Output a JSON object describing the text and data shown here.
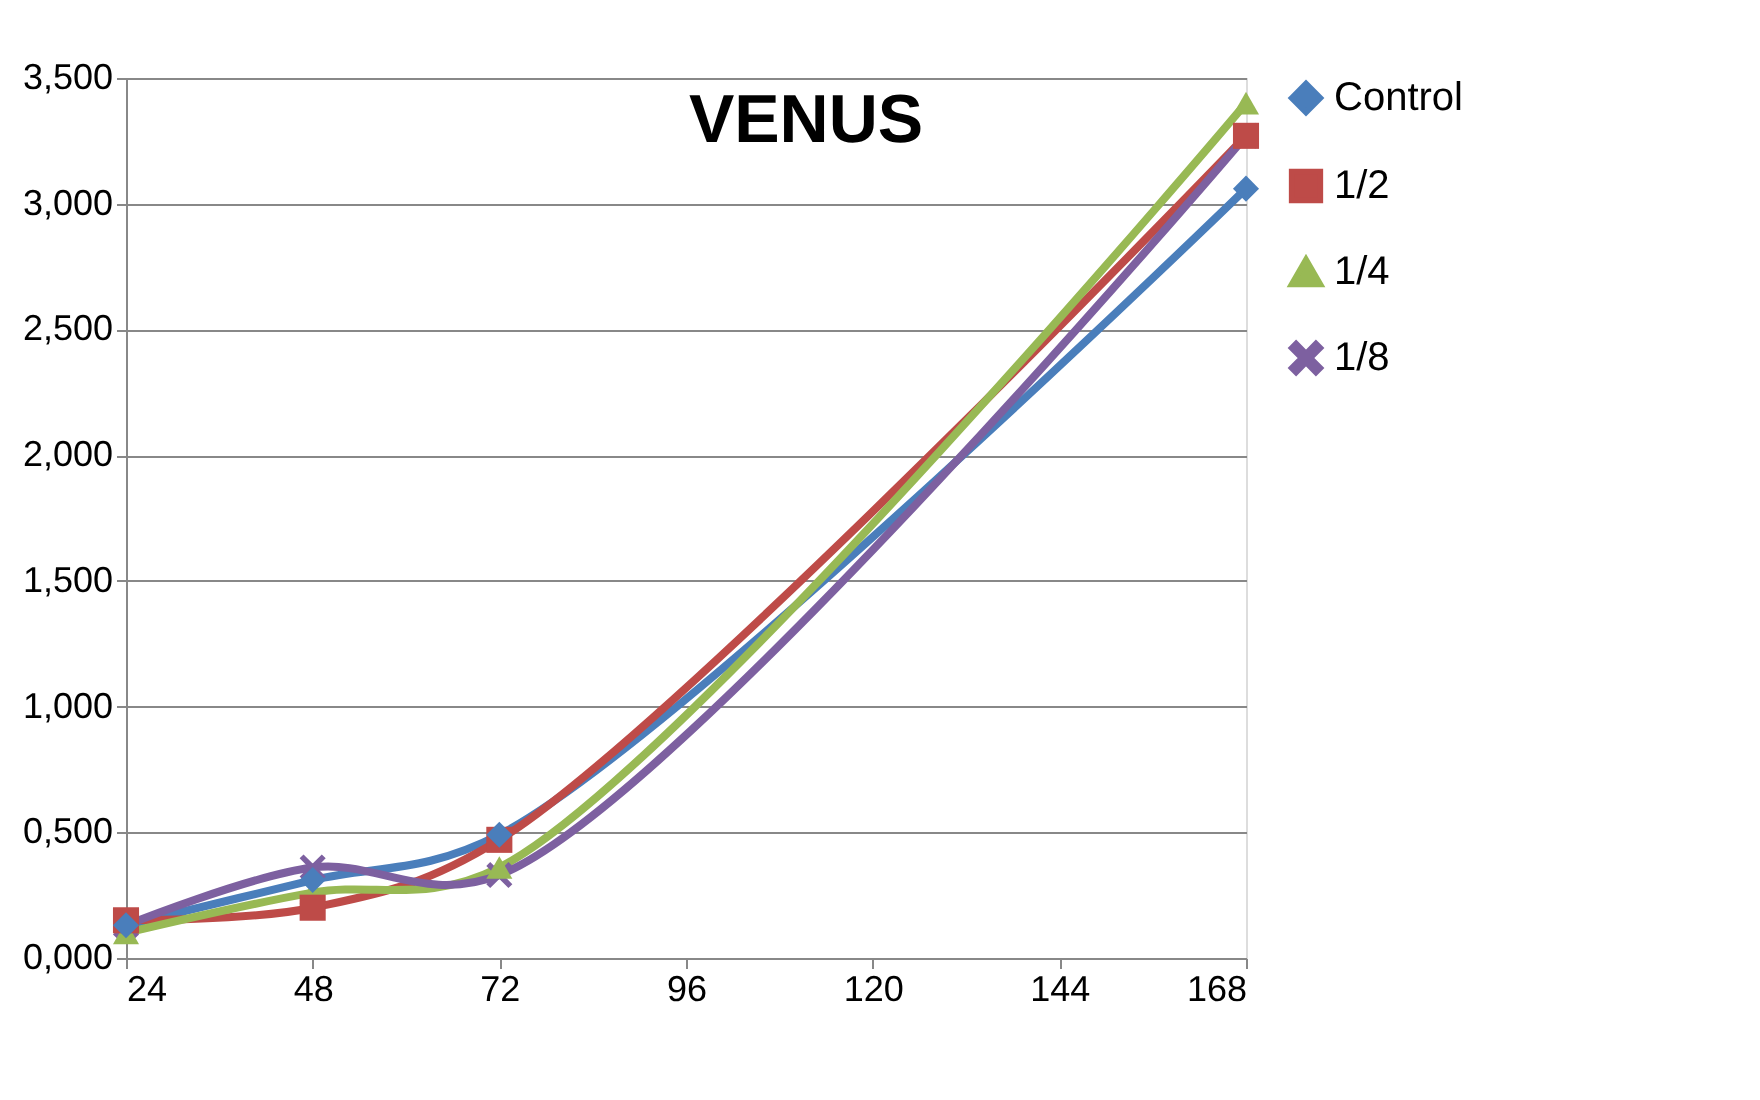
{
  "chart_data": {
    "type": "line",
    "title": "VENUS",
    "x": [
      24,
      48,
      72,
      168
    ],
    "xlim": [
      24,
      168
    ],
    "xticks": [
      24,
      48,
      72,
      96,
      120,
      144,
      168
    ],
    "ylim": [
      0,
      3.5
    ],
    "yticks": [
      {
        "value": 0,
        "label": "0,000"
      },
      {
        "value": 0.5,
        "label": "0,500"
      },
      {
        "value": 1,
        "label": "1,000"
      },
      {
        "value": 1.5,
        "label": "1,500"
      },
      {
        "value": 2,
        "label": "2,000"
      },
      {
        "value": 2.5,
        "label": "2,500"
      },
      {
        "value": 3,
        "label": "3,000"
      },
      {
        "value": 3.5,
        "label": "3,500"
      }
    ],
    "grid": "y",
    "legend": "right",
    "line_style": "solid",
    "series": [
      {
        "name": "Control",
        "color": "#4a7ebb",
        "marker": "diamond",
        "values": [
          0.13,
          0.31,
          0.49,
          3.06
        ]
      },
      {
        "name": "1/2",
        "color": "#be4b48",
        "marker": "square",
        "values": [
          0.15,
          0.2,
          0.47,
          3.27
        ]
      },
      {
        "name": "1/4",
        "color": "#98b954",
        "marker": "triangle",
        "values": [
          0.1,
          0.26,
          0.36,
          3.4
        ]
      },
      {
        "name": "1/8",
        "color": "#7d60a0",
        "marker": "cross",
        "values": [
          0.13,
          0.36,
          0.33,
          3.27
        ]
      }
    ]
  }
}
